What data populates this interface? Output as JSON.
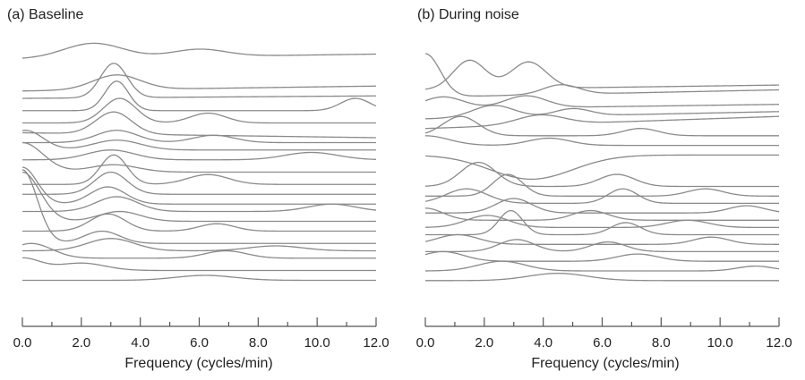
{
  "panels": [
    {
      "title": "(a) Baseline"
    },
    {
      "title": "(b) During noise"
    }
  ],
  "chart_data": [
    {
      "type": "line",
      "title": "(a) Baseline",
      "xlabel": "Frequency (cycles/min)",
      "ylabel": "",
      "xlim": [
        0,
        12
      ],
      "xticks": [
        "0.0",
        "2.0",
        "4.0",
        "6.0",
        "8.0",
        "10.0",
        "12.0"
      ],
      "grid": false,
      "stacked_offset_traces": true,
      "series": [
        {
          "base": 0.04,
          "peaks": [
            [
              2.4,
              0.06,
              1.0
            ],
            [
              6.0,
              0.03,
              0.9
            ]
          ],
          "slope": -0.02
        },
        {
          "base": 0.17,
          "peaks": [
            [
              3.2,
              0.06,
              0.8
            ]
          ],
          "slope": -0.02
        },
        {
          "base": 0.2,
          "peaks": [
            [
              3.1,
              0.14,
              0.45
            ]
          ],
          "slope": -0.01
        },
        {
          "base": 0.25,
          "peaks": [
            [
              3.2,
              0.12,
              0.4
            ],
            [
              11.3,
              0.05,
              0.5
            ]
          ],
          "slope": 0.0
        },
        {
          "base": 0.3,
          "peaks": [
            [
              3.3,
              0.1,
              0.55
            ],
            [
              6.3,
              0.04,
              0.6
            ]
          ],
          "slope": 0.0
        },
        {
          "base": 0.34,
          "peaks": [
            [
              3.1,
              0.09,
              0.6
            ]
          ],
          "slope": 0.02
        },
        {
          "base": 0.38,
          "peaks": [
            [
              3.2,
              0.05,
              0.7
            ],
            [
              6.5,
              0.03,
              0.7
            ]
          ],
          "slope": 0.0
        },
        {
          "base": 0.41,
          "peaks": [
            [
              0.1,
              0.08,
              0.6
            ],
            [
              3.2,
              0.04,
              0.8
            ]
          ],
          "slope": 0.0
        },
        {
          "base": 0.45,
          "peaks": [
            [
              3.0,
              0.04,
              0.8
            ],
            [
              9.8,
              0.03,
              0.9
            ]
          ],
          "slope": 0.0
        },
        {
          "base": 0.5,
          "peaks": [
            [
              0.0,
              0.12,
              0.7
            ],
            [
              3.1,
              0.03,
              0.8
            ]
          ],
          "slope": 0.0
        },
        {
          "base": 0.55,
          "peaks": [
            [
              3.1,
              0.12,
              0.45
            ],
            [
              6.3,
              0.04,
              0.7
            ]
          ],
          "slope": 0.0
        },
        {
          "base": 0.59,
          "peaks": [
            [
              3.0,
              0.09,
              0.55
            ]
          ],
          "slope": 0.0
        },
        {
          "base": 0.63,
          "peaks": [
            [
              0.0,
              0.15,
              0.5
            ],
            [
              2.9,
              0.07,
              0.6
            ]
          ],
          "slope": 0.0
        },
        {
          "base": 0.66,
          "peaks": [
            [
              3.2,
              0.06,
              0.7
            ],
            [
              10.5,
              0.03,
              0.8
            ]
          ],
          "slope": 0.0
        },
        {
          "base": 0.7,
          "peaks": [
            [
              0.0,
              0.2,
              0.6
            ],
            [
              3.3,
              0.04,
              0.7
            ]
          ],
          "slope": 0.0
        },
        {
          "base": 0.74,
          "peaks": [
            [
              2.9,
              0.07,
              0.6
            ],
            [
              6.6,
              0.03,
              0.6
            ]
          ],
          "slope": 0.0
        },
        {
          "base": 0.79,
          "peaks": [
            [
              0.0,
              0.3,
              0.5
            ],
            [
              2.7,
              0.05,
              0.6
            ]
          ],
          "slope": 0.0
        },
        {
          "base": 0.82,
          "peaks": [
            [
              3.0,
              0.05,
              0.8
            ],
            [
              8.6,
              0.02,
              0.9
            ]
          ],
          "slope": 0.0
        },
        {
          "base": 0.85,
          "peaks": [
            [
              0.3,
              0.06,
              0.7
            ],
            [
              6.9,
              0.03,
              0.7
            ]
          ],
          "slope": 0.0
        },
        {
          "base": 0.9,
          "peaks": [
            [
              0.0,
              0.05,
              0.6
            ],
            [
              2.0,
              0.03,
              0.8
            ]
          ],
          "slope": 0.0
        },
        {
          "base": 0.94,
          "peaks": [
            [
              6.2,
              0.02,
              1.0
            ]
          ],
          "slope": 0.0
        }
      ]
    },
    {
      "type": "line",
      "title": "(b) During noise",
      "xlabel": "Frequency (cycles/min)",
      "ylabel": "",
      "xlim": [
        0,
        12
      ],
      "xticks": [
        "0.0",
        "2.0",
        "4.0",
        "6.0",
        "8.0",
        "10.0",
        "12.0"
      ],
      "grid": false,
      "stacked_offset_traces": true,
      "series": [
        {
          "base": 0.15,
          "peaks": [
            [
              1.5,
              0.12,
              0.55
            ],
            [
              3.5,
              0.11,
              0.6
            ]
          ],
          "slope": -0.02
        },
        {
          "base": 0.18,
          "peaks": [
            [
              0.0,
              0.18,
              0.5
            ],
            [
              4.6,
              0.04,
              0.6
            ]
          ],
          "slope": -0.03
        },
        {
          "base": 0.23,
          "peaks": [
            [
              0.6,
              0.05,
              0.7
            ],
            [
              3.4,
              0.05,
              0.7
            ]
          ],
          "slope": -0.02
        },
        {
          "base": 0.27,
          "peaks": [
            [
              2.3,
              0.05,
              0.7
            ],
            [
              5.0,
              0.03,
              0.6
            ]
          ],
          "slope": -0.03
        },
        {
          "base": 0.31,
          "peaks": [
            [
              3.9,
              0.04,
              0.8
            ]
          ],
          "slope": -0.05
        },
        {
          "base": 0.34,
          "peaks": [
            [
              1.2,
              0.08,
              0.6
            ],
            [
              7.3,
              0.03,
              0.6
            ]
          ],
          "slope": 0.0
        },
        {
          "base": 0.38,
          "peaks": [
            [
              0.0,
              0.04,
              0.8
            ],
            [
              4.2,
              0.03,
              0.7
            ]
          ],
          "slope": 0.0
        },
        {
          "base": 0.42,
          "peaks": [
            [
              3.6,
              -0.1,
              1.4
            ]
          ],
          "slope": 0.0
        },
        {
          "base": 0.55,
          "peaks": [
            [
              1.8,
              0.1,
              0.6
            ],
            [
              6.5,
              0.05,
              0.6
            ]
          ],
          "slope": 0.0
        },
        {
          "base": 0.59,
          "peaks": [
            [
              2.8,
              0.09,
              0.5
            ],
            [
              9.5,
              0.03,
              0.6
            ]
          ],
          "slope": 0.0
        },
        {
          "base": 0.62,
          "peaks": [
            [
              1.4,
              0.06,
              0.7
            ],
            [
              6.7,
              0.06,
              0.5
            ]
          ],
          "slope": 0.0
        },
        {
          "base": 0.66,
          "peaks": [
            [
              3.0,
              0.06,
              0.6
            ],
            [
              10.9,
              0.03,
              0.6
            ]
          ],
          "slope": 0.0
        },
        {
          "base": 0.69,
          "peaks": [
            [
              0.0,
              0.05,
              0.6
            ],
            [
              5.6,
              0.04,
              0.6
            ]
          ],
          "slope": 0.0
        },
        {
          "base": 0.72,
          "peaks": [
            [
              2.1,
              0.05,
              0.7
            ],
            [
              8.9,
              0.03,
              0.7
            ]
          ],
          "slope": 0.0
        },
        {
          "base": 0.75,
          "peaks": [
            [
              2.9,
              0.1,
              0.4
            ],
            [
              6.8,
              0.05,
              0.5
            ]
          ],
          "slope": 0.0
        },
        {
          "base": 0.79,
          "peaks": [
            [
              1.1,
              0.04,
              0.7
            ],
            [
              9.7,
              0.03,
              0.6
            ]
          ],
          "slope": 0.0
        },
        {
          "base": 0.82,
          "peaks": [
            [
              3.1,
              0.05,
              0.6
            ],
            [
              6.2,
              0.04,
              0.6
            ]
          ],
          "slope": 0.0
        },
        {
          "base": 0.86,
          "peaks": [
            [
              0.6,
              0.04,
              0.7
            ],
            [
              7.2,
              0.03,
              0.7
            ]
          ],
          "slope": 0.0
        },
        {
          "base": 0.9,
          "peaks": [
            [
              2.6,
              0.04,
              0.8
            ],
            [
              11.2,
              0.02,
              0.6
            ]
          ],
          "slope": 0.0
        },
        {
          "base": 0.94,
          "peaks": [
            [
              4.5,
              0.03,
              1.0
            ]
          ],
          "slope": 0.0
        }
      ]
    }
  ]
}
